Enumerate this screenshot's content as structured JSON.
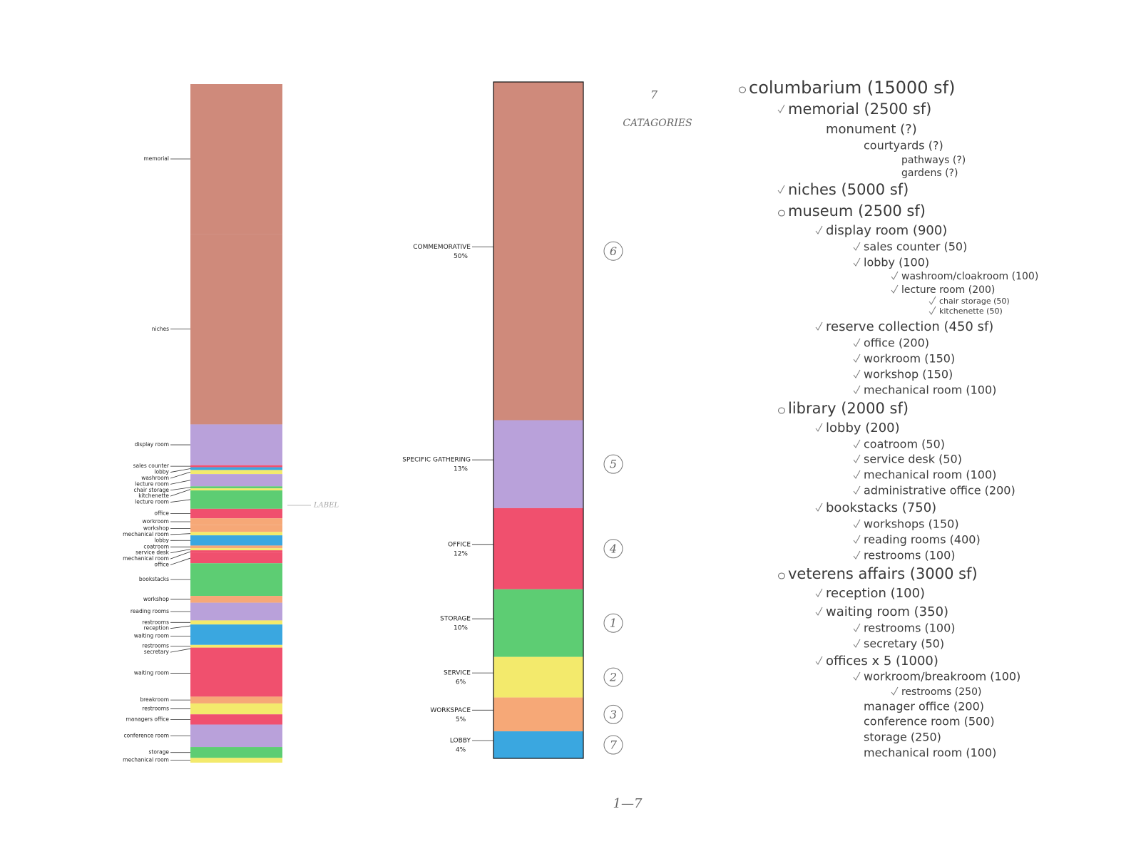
{
  "chart_data": [
    {
      "type": "stacked-column",
      "categories": [
        "memorial",
        "niches",
        "display room",
        "sales counter",
        "lobby",
        "washroom",
        "lecture room",
        "chair storage",
        "kitchenette",
        "lecture room",
        "office",
        "workroom",
        "workshop",
        "mechanical room",
        "lobby",
        "coatroom",
        "service desk",
        "mechanical room",
        "office",
        "bookstacks",
        "workshop",
        "reading rooms",
        "restrooms",
        "reception",
        "waiting room",
        "restrooms",
        "secretary",
        "waiting room",
        "breakroom",
        "restrooms",
        "managers office",
        "conference room",
        "storage",
        "mechanical room"
      ],
      "values": [
        22,
        28,
        6,
        0.3,
        0.4,
        0.6,
        1.8,
        0.3,
        0.3,
        2.7,
        1.4,
        1.0,
        1.0,
        0.5,
        1.5,
        0.4,
        0.3,
        0.4,
        1.5,
        4.8,
        1.0,
        2.6,
        0.6,
        0.4,
        2.6,
        0.4,
        0.3,
        6.9,
        1.0,
        1.6,
        1.5,
        3.3,
        1.6,
        0.7
      ],
      "colors": [
        "#cf8a7b",
        "#cf8a7b",
        "#b9a1da",
        "#f0506e",
        "#3aa7e0",
        "#f3ea6c",
        "#b9a1da",
        "#5dcd73",
        "#f3ea6c",
        "#5dcd73",
        "#f0506e",
        "#f6a877",
        "#f6a877",
        "#f3ea6c",
        "#3aa7e0",
        "#f6a877",
        "#f3ea6c",
        "#f0506e",
        "#f0506e",
        "#5dcd73",
        "#f6a877",
        "#b9a1da",
        "#f3ea6c",
        "#3aa7e0",
        "#3aa7e0",
        "#f3ea6c",
        "#f0506e",
        "#f0506e",
        "#f6a877",
        "#f3ea6c",
        "#f0506e",
        "#b9a1da",
        "#5dcd73",
        "#f3ea6c"
      ]
    },
    {
      "type": "stacked-column",
      "categories": [
        "COMMEMORATIVE",
        "SPECIFIC GATHERING",
        "OFFICE",
        "STORAGE",
        "SERVICE",
        "WORKSPACE",
        "LOBBY"
      ],
      "values": [
        50,
        13,
        12,
        10,
        6,
        5,
        4
      ],
      "value_labels": [
        "50%",
        "13%",
        "12%",
        "10%",
        "6%",
        "5%",
        "4%"
      ],
      "annotations": [
        "6",
        "5",
        "4",
        "1",
        "2",
        "3",
        "7"
      ],
      "colors": [
        "#cf8a7b",
        "#b9a1da",
        "#f0506e",
        "#5dcd73",
        "#f3ea6c",
        "#f6a877",
        "#3aa7e0"
      ]
    }
  ],
  "notes": {
    "count": "7",
    "categories": "CATAGORIES",
    "label": "LABEL",
    "range": "1—7"
  },
  "program": [
    {
      "text": "columbarium (15000 sf)",
      "mark": "circle",
      "children": [
        {
          "text": "memorial (2500 sf)",
          "mark": "check",
          "children": [
            {
              "text": "monument (?)",
              "children": [
                {
                  "text": "courtyards (?)",
                  "children": [
                    {
                      "text": "pathways (?)"
                    },
                    {
                      "text": "gardens (?)"
                    }
                  ]
                }
              ]
            }
          ]
        },
        {
          "text": "niches (5000 sf)",
          "mark": "check"
        },
        {
          "text": "museum (2500 sf)",
          "mark": "circle",
          "children": [
            {
              "text": "display room (900)",
              "mark": "check",
              "children": [
                {
                  "text": "sales counter (50)",
                  "mark": "check"
                },
                {
                  "text": "lobby (100)",
                  "mark": "check",
                  "children": [
                    {
                      "text": "washroom/cloakroom (100)",
                      "mark": "check"
                    },
                    {
                      "text": "lecture room (200)",
                      "mark": "check",
                      "children": [
                        {
                          "text": "chair storage (50)",
                          "mark": "check"
                        },
                        {
                          "text": "kitchenette (50)",
                          "mark": "check"
                        }
                      ]
                    }
                  ]
                }
              ]
            },
            {
              "text": "reserve collection (450 sf)",
              "mark": "check",
              "children": [
                {
                  "text": "office (200)",
                  "mark": "check"
                },
                {
                  "text": "workroom (150)",
                  "mark": "check"
                },
                {
                  "text": "workshop (150)",
                  "mark": "check"
                },
                {
                  "text": "mechanical room (100)",
                  "mark": "check"
                }
              ]
            }
          ]
        },
        {
          "text": "library (2000 sf)",
          "mark": "circle",
          "children": [
            {
              "text": "lobby (200)",
              "mark": "check",
              "children": [
                {
                  "text": "coatroom (50)",
                  "mark": "check"
                },
                {
                  "text": "service desk (50)",
                  "mark": "check"
                },
                {
                  "text": "mechanical room (100)",
                  "mark": "check"
                },
                {
                  "text": "administrative office (200)",
                  "mark": "check"
                }
              ]
            },
            {
              "text": "bookstacks (750)",
              "mark": "check",
              "children": [
                {
                  "text": "workshops (150)",
                  "mark": "check"
                },
                {
                  "text": "reading rooms (400)",
                  "mark": "check"
                },
                {
                  "text": "restrooms (100)",
                  "mark": "check"
                }
              ]
            }
          ]
        },
        {
          "text": "veterens affairs (3000 sf)",
          "mark": "circle",
          "children": [
            {
              "text": "reception (100)",
              "mark": "check"
            },
            {
              "text": "waiting room (350)",
              "mark": "check",
              "children": [
                {
                  "text": "restrooms (100)",
                  "mark": "check"
                },
                {
                  "text": "secretary (50)",
                  "mark": "check"
                }
              ]
            },
            {
              "text": "offices x 5 (1000)",
              "mark": "check",
              "children": [
                {
                  "text": "workroom/breakroom (100)",
                  "mark": "check",
                  "children": [
                    {
                      "text": "restrooms (250)",
                      "mark": "check"
                    }
                  ]
                },
                {
                  "text": "manager office (200)"
                },
                {
                  "text": "conference room (500)"
                },
                {
                  "text": "storage (250)"
                },
                {
                  "text": "mechanical room (100)"
                }
              ]
            }
          ]
        }
      ]
    }
  ]
}
